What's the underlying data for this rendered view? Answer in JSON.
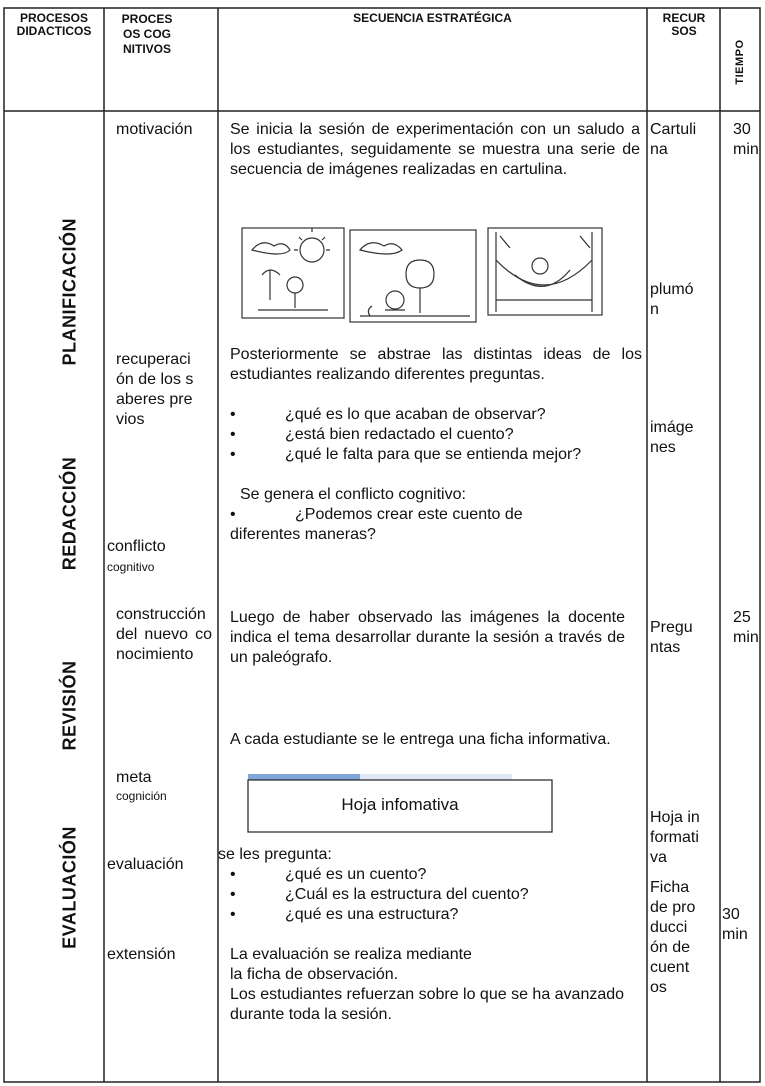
{
  "table": {
    "headers": [
      "PROCESOS DIDACTICOS",
      "PROCESOS COGNITIVOS",
      "SECUENCIA ESTRATÉGICA",
      "RECURSOS",
      "TIEMPO"
    ],
    "processes": [
      "PLANIFICACIÓN",
      "REDACCIÓN",
      "REVISIÓN",
      "EVALUACIÓN"
    ],
    "cognitive": {
      "motivation": "motivación",
      "prior": "recuperación de los saberes previos",
      "conflict": [
        "conflicto",
        "cognitivo"
      ],
      "construction": "construcción del nuevo conocimiento",
      "meta": [
        "meta",
        "cognición"
      ],
      "evaluation": "evaluación",
      "extension": "extensión"
    },
    "sequence": {
      "intro": "Se inicia la sesión de experimentación con un saludo a los estudiantes, seguidamente se muestra una serie de secuencia de imágenes realizadas en cartulina.",
      "abstract": "Posteriormente se abstrae las distintas ideas de los estudiantes realizando diferentes preguntas.",
      "questions1": [
        "¿qué es lo que acaban de observar?",
        "¿está bien redactado el cuento?",
        "¿qué le falta para que se entienda mejor?"
      ],
      "conflict": "Se genera el conflicto cognitivo:",
      "questions2": [
        "¿Podemos crear este cuento de diferentes maneras?"
      ],
      "after": "Luego de haber observado las imágenes la docente indica el tema desarrollar durante la sesión a través de un paleógrafo.",
      "handout": "A cada estudiante se le entrega una ficha informativa.",
      "box": "Hoja infomativa",
      "ask": "se les pregunta:",
      "questions3": [
        "¿qué es un cuento?",
        "¿Cuál es la estructura del cuento?",
        "¿qué es una estructura?"
      ],
      "eval": [
        "La evaluación se realiza mediante",
        "la ficha de observación.",
        "Los estudiantes refuerzan  sobre lo que se ha avanzado durante toda la sesión."
      ]
    },
    "resources": [
      "Cartulina",
      "plumón",
      "imágenes",
      "Preguntas",
      "Hoja informativa",
      "Ficha de producción de cuentos"
    ],
    "times": [
      "30 min",
      "25 min",
      "30 min"
    ]
  }
}
